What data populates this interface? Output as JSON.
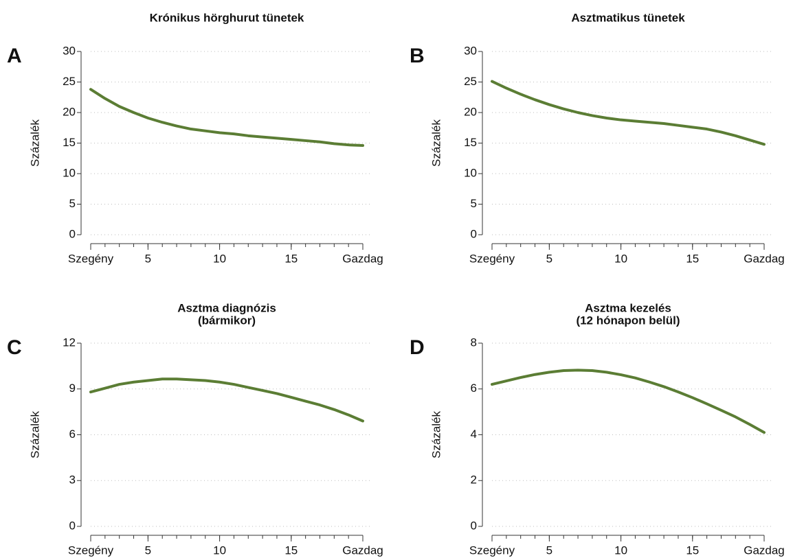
{
  "chart_data": [
    {
      "type": "line",
      "panel": "A",
      "title": [
        "Krónikus hörghurut tünetek"
      ],
      "ylabel": "Százalék",
      "x": [
        1,
        2,
        3,
        4,
        5,
        6,
        7,
        8,
        9,
        10,
        11,
        12,
        13,
        14,
        15,
        16,
        17,
        18,
        19,
        20
      ],
      "series": [
        {
          "color": "#5b7d34",
          "values": [
            23.8,
            22.3,
            21.0,
            20.0,
            19.1,
            18.4,
            17.8,
            17.3,
            17.0,
            16.7,
            16.5,
            16.2,
            16.0,
            15.8,
            15.6,
            15.4,
            15.2,
            14.9,
            14.7,
            14.6
          ]
        }
      ],
      "xlim": [
        1,
        20
      ],
      "xticks": [
        {
          "value": 1,
          "label": "Szegény"
        },
        5,
        10,
        15,
        {
          "value": 20,
          "label": "Gazdag"
        }
      ],
      "ylim": [
        0,
        30
      ],
      "yticks": [
        0,
        5,
        10,
        15,
        20,
        25,
        30
      ],
      "grid": true
    },
    {
      "type": "line",
      "panel": "B",
      "title": [
        "Asztmatikus tünetek"
      ],
      "ylabel": "Százalék",
      "x": [
        1,
        2,
        3,
        4,
        5,
        6,
        7,
        8,
        9,
        10,
        11,
        12,
        13,
        14,
        15,
        16,
        17,
        18,
        19,
        20
      ],
      "series": [
        {
          "color": "#5b7d34",
          "values": [
            25.1,
            24.0,
            23.0,
            22.1,
            21.3,
            20.6,
            20.0,
            19.5,
            19.1,
            18.8,
            18.6,
            18.4,
            18.2,
            17.9,
            17.6,
            17.3,
            16.8,
            16.2,
            15.5,
            14.8
          ]
        }
      ],
      "xlim": [
        1,
        20
      ],
      "xticks": [
        {
          "value": 1,
          "label": "Szegény"
        },
        5,
        10,
        15,
        {
          "value": 20,
          "label": "Gazdag"
        }
      ],
      "ylim": [
        0,
        30
      ],
      "yticks": [
        0,
        5,
        10,
        15,
        20,
        25,
        30
      ],
      "grid": true
    },
    {
      "type": "line",
      "panel": "C",
      "title": [
        "Asztma diagnózis",
        "(bármikor)"
      ],
      "ylabel": "Százalék",
      "x": [
        1,
        2,
        3,
        4,
        5,
        6,
        7,
        8,
        9,
        10,
        11,
        12,
        13,
        14,
        15,
        16,
        17,
        18,
        19,
        20
      ],
      "series": [
        {
          "color": "#5b7d34",
          "values": [
            8.8,
            9.05,
            9.3,
            9.45,
            9.55,
            9.65,
            9.65,
            9.6,
            9.55,
            9.45,
            9.3,
            9.1,
            8.9,
            8.7,
            8.45,
            8.2,
            7.95,
            7.65,
            7.3,
            6.9
          ]
        }
      ],
      "xlim": [
        1,
        20
      ],
      "xticks": [
        {
          "value": 1,
          "label": "Szegény"
        },
        5,
        10,
        15,
        {
          "value": 20,
          "label": "Gazdag"
        }
      ],
      "ylim": [
        0,
        12
      ],
      "yticks": [
        0,
        3,
        6,
        9,
        12
      ],
      "grid": true
    },
    {
      "type": "line",
      "panel": "D",
      "title": [
        "Asztma kezelés",
        "(12 hónapon belül)"
      ],
      "ylabel": "Százalék",
      "x": [
        1,
        2,
        3,
        4,
        5,
        6,
        7,
        8,
        9,
        10,
        11,
        12,
        13,
        14,
        15,
        16,
        17,
        18,
        19,
        20
      ],
      "series": [
        {
          "color": "#5b7d34",
          "values": [
            6.2,
            6.35,
            6.5,
            6.63,
            6.73,
            6.8,
            6.82,
            6.8,
            6.73,
            6.62,
            6.48,
            6.3,
            6.1,
            5.87,
            5.62,
            5.35,
            5.07,
            4.78,
            4.45,
            4.1
          ]
        }
      ],
      "xlim": [
        1,
        20
      ],
      "xticks": [
        {
          "value": 1,
          "label": "Szegény"
        },
        5,
        10,
        15,
        {
          "value": 20,
          "label": "Gazdag"
        }
      ],
      "ylim": [
        0,
        8
      ],
      "yticks": [
        0,
        2,
        4,
        6,
        8
      ],
      "grid": true
    }
  ]
}
